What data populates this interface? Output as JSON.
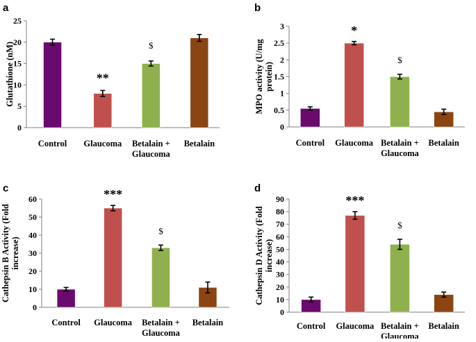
{
  "chart_data": [
    {
      "panel": "a",
      "type": "bar",
      "title": "",
      "xlabel": "",
      "ylabel": "Glutathione (nM)",
      "ylabel_lines": [
        "Glutathione (nM)"
      ],
      "ylim": [
        0,
        25
      ],
      "yticks": [
        0,
        5,
        10,
        15,
        20,
        25
      ],
      "categories": [
        "Control",
        "Glaucoma",
        "Betalain + Glaucoma",
        "Betalain"
      ],
      "category_lines": [
        [
          "Control"
        ],
        [
          "Glaucoma"
        ],
        [
          "Betalain +",
          "Glaucoma"
        ],
        [
          "Betalain"
        ]
      ],
      "values": [
        20,
        8,
        15,
        21
      ],
      "errors": [
        0.7,
        0.7,
        0.6,
        0.8
      ],
      "annotations": [
        "",
        "**",
        "$",
        ""
      ],
      "colors": [
        "#6a0a6e",
        "#c0504d",
        "#8fb04c",
        "#8b4513"
      ]
    },
    {
      "panel": "b",
      "type": "bar",
      "title": "",
      "xlabel": "",
      "ylabel": "MPO activity (U/mg protein)",
      "ylabel_lines": [
        "MPO activity (U/mg",
        "protein)"
      ],
      "ylim": [
        0,
        3
      ],
      "yticks": [
        0,
        0.5,
        1,
        1.5,
        2,
        2.5,
        3
      ],
      "categories": [
        "Control",
        "Glaucoma",
        "Betalain + Glaucoma",
        "Betalain"
      ],
      "category_lines": [
        [
          "Control"
        ],
        [
          "Glaucoma"
        ],
        [
          "Betalain +",
          "Glaucoma"
        ],
        [
          "Betalain"
        ]
      ],
      "values": [
        0.55,
        2.5,
        1.5,
        0.45
      ],
      "errors": [
        0.05,
        0.05,
        0.07,
        0.08
      ],
      "annotations": [
        "",
        "*",
        "$",
        ""
      ],
      "colors": [
        "#6a0a6e",
        "#c0504d",
        "#8fb04c",
        "#8b4513"
      ]
    },
    {
      "panel": "c",
      "type": "bar",
      "title": "",
      "xlabel": "",
      "ylabel": "Cathepsin B Activity (Fold increase)",
      "ylabel_lines": [
        "Cathepsin B Activity (Fold",
        "increase)"
      ],
      "ylim": [
        0,
        60
      ],
      "yticks": [
        0,
        10,
        20,
        30,
        40,
        50,
        60
      ],
      "categories": [
        "Control",
        "Glaucoma",
        "Betalain + Glaucoma",
        "Betalain"
      ],
      "category_lines": [
        [
          "Control"
        ],
        [
          "Glaucoma"
        ],
        [
          "Betalain +",
          "Glaucoma"
        ],
        [
          "Betalain"
        ]
      ],
      "values": [
        10,
        55,
        33,
        11
      ],
      "errors": [
        1,
        1.5,
        1.5,
        3
      ],
      "annotations": [
        "",
        "***",
        "$",
        ""
      ],
      "colors": [
        "#6a0a6e",
        "#c0504d",
        "#8fb04c",
        "#8b4513"
      ]
    },
    {
      "panel": "d",
      "type": "bar",
      "title": "",
      "xlabel": "",
      "ylabel": "Cathepsin D Activity (Fold increase)",
      "ylabel_lines": [
        "Cathepsin D Activity (Fold",
        "increase)"
      ],
      "ylim": [
        0,
        90
      ],
      "yticks": [
        0,
        10,
        20,
        30,
        40,
        50,
        60,
        70,
        80,
        90
      ],
      "categories": [
        "Control",
        "Glaucoma",
        "Betalain + Glaucoma",
        "Betalain"
      ],
      "category_lines": [
        [
          "Control"
        ],
        [
          "Glaucoma"
        ],
        [
          "Betalain +",
          "Glaucoma"
        ],
        [
          "Betalain"
        ]
      ],
      "values": [
        10,
        77,
        54,
        14
      ],
      "errors": [
        2,
        3,
        4,
        2
      ],
      "annotations": [
        "",
        "***",
        "$",
        ""
      ],
      "colors": [
        "#6a0a6e",
        "#c0504d",
        "#8fb04c",
        "#8b4513"
      ]
    }
  ]
}
